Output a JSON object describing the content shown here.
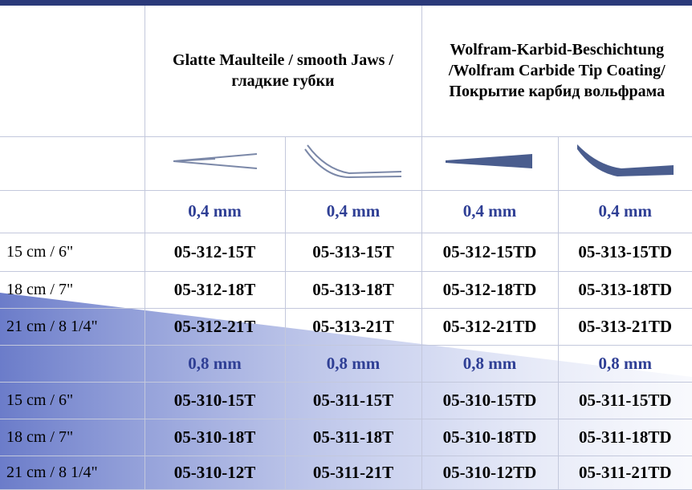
{
  "header": {
    "group1": "Glatte Maulteile / smooth Jaws / гладкие губки",
    "group2": "Wolfram-Karbid-Beschichtung /Wolfram Carbide Tip Coating/Покрытие карбид вольфрама"
  },
  "sections": [
    {
      "size_labels": [
        "0,4 mm",
        "0,4 mm",
        "0,4 mm",
        "0,4 mm"
      ],
      "rows": [
        {
          "length": "15 cm / 6\"",
          "codes": [
            "05-312-15T",
            "05-313-15T",
            "05-312-15TD",
            "05-313-15TD"
          ]
        },
        {
          "length": "18 cm / 7\"",
          "codes": [
            "05-312-18T",
            "05-313-18T",
            "05-312-18TD",
            "05-313-18TD"
          ]
        },
        {
          "length": "21 cm / 8 1/4\"",
          "codes": [
            "05-312-21T",
            "05-313-21T",
            "05-312-21TD",
            "05-313-21TD"
          ]
        }
      ]
    },
    {
      "size_labels": [
        "0,8 mm",
        "0,8 mm",
        "0,8 mm",
        "0,8 mm"
      ],
      "rows": [
        {
          "length": "15 cm / 6\"",
          "codes": [
            "05-310-15T",
            "05-311-15T",
            "05-310-15TD",
            "05-311-15TD"
          ]
        },
        {
          "length": "18 cm / 7\"",
          "codes": [
            "05-310-18T",
            "05-311-18T",
            "05-310-18TD",
            "05-311-18TD"
          ]
        },
        {
          "length": "21 cm / 8 1/4\"",
          "codes": [
            "05-310-12T",
            "05-311-21T",
            "05-310-12TD",
            "05-311-21TD"
          ]
        }
      ]
    }
  ]
}
